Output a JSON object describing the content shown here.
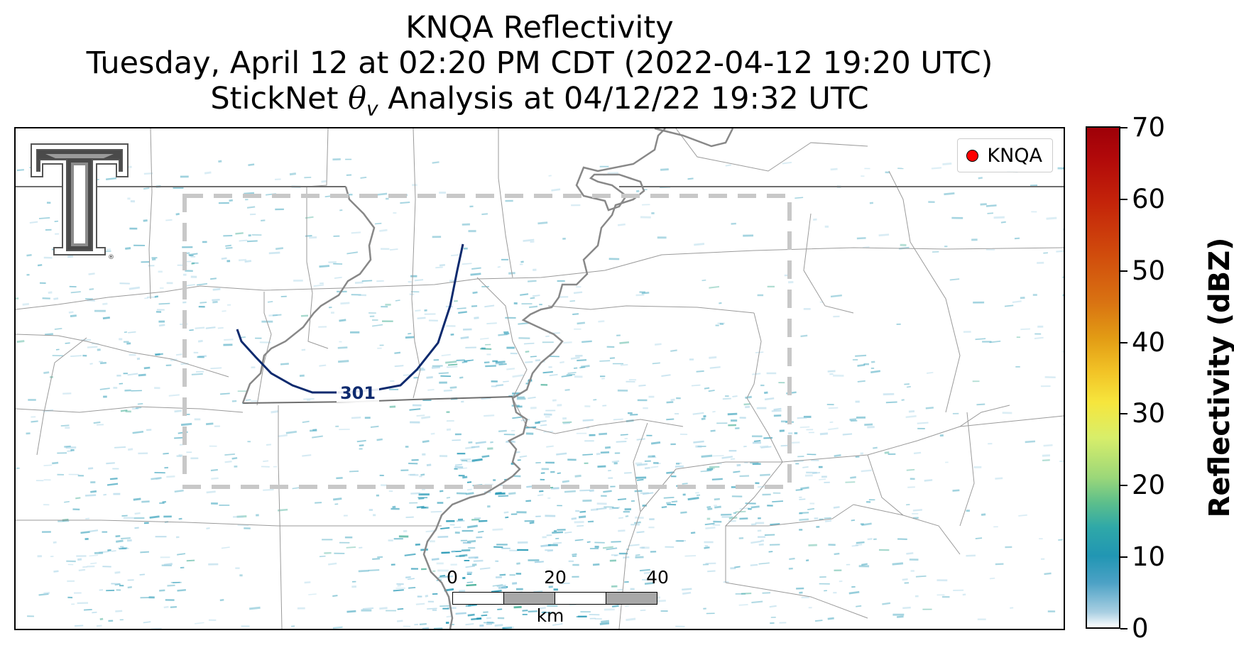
{
  "title": {
    "line1": "KNQA Reflectivity",
    "line2": "Tuesday, April 12 at 02:20 PM CDT (2022-04-12 19:20 UTC)",
    "line3_pre": "StickNet ",
    "line3_theta": "θ",
    "line3_sub": "v",
    "line3_post": " Analysis at 04/12/22 19:32 UTC"
  },
  "legend": {
    "label": "KNQA",
    "marker_color": "#ff0000"
  },
  "contour": {
    "label": "301",
    "color": "#0d2a6e"
  },
  "scale_bar": {
    "ticks": [
      "0",
      "20",
      "40"
    ],
    "unit": "km"
  },
  "colorbar": {
    "title": "Reflectivity (dBZ)",
    "ticks": [
      "0",
      "10",
      "20",
      "30",
      "40",
      "50",
      "60",
      "70"
    ],
    "range": [
      0,
      70
    ]
  },
  "logo": {
    "name": "texas-tech-double-t-logo",
    "mark": "®"
  },
  "colors": {
    "echo_primary": "#2196b3",
    "echo_light": "#9fd0e4",
    "echo_green": "#2fa58a",
    "analysis_box": "#c8c8c8",
    "river": "#808080",
    "county_lines": "#999999"
  }
}
